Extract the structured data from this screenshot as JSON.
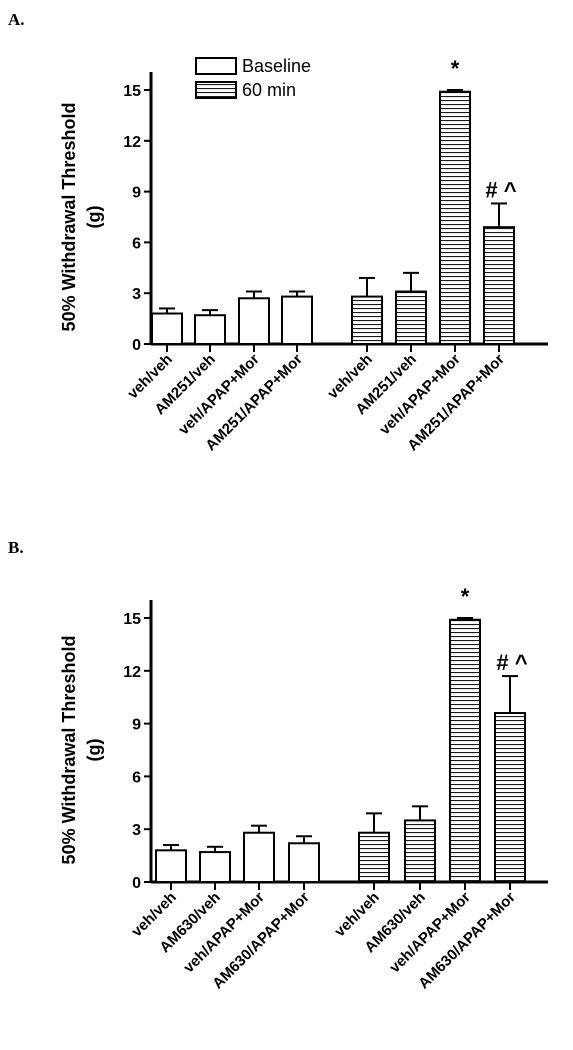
{
  "chart_data": [
    {
      "type": "bar",
      "panel_label": "A.",
      "ylabel_line1": "50% Withdrawal Threshold",
      "ylabel_line2": "(g)",
      "ylim": [
        0,
        15
      ],
      "yticks": [
        0,
        3,
        6,
        9,
        12,
        15
      ],
      "legend": {
        "placement": "top",
        "entries": [
          {
            "name": "Baseline",
            "pattern": "open"
          },
          {
            "name": "60 min",
            "pattern": "horizontal-lines"
          }
        ]
      },
      "groups": [
        {
          "pattern": "open",
          "categories": [
            "veh/veh",
            "AM251/veh",
            "veh/APAP+Mor",
            "AM251/APAP+Mor"
          ],
          "values": [
            1.8,
            1.7,
            2.7,
            2.8
          ],
          "errors": [
            0.3,
            0.3,
            0.4,
            0.3
          ],
          "annotations": [
            "",
            "",
            "",
            ""
          ]
        },
        {
          "pattern": "horizontal-lines",
          "categories": [
            "veh/veh",
            "AM251/veh",
            "veh/APAP+Mor",
            "AM251/APAP+Mor"
          ],
          "values": [
            2.8,
            3.1,
            14.9,
            6.9
          ],
          "errors": [
            1.1,
            1.1,
            0.1,
            1.4
          ],
          "annotations": [
            "",
            "",
            "*",
            "# ^"
          ]
        }
      ]
    },
    {
      "type": "bar",
      "panel_label": "B.",
      "ylabel_line1": "50% Withdrawal Threshold",
      "ylabel_line2": "(g)",
      "ylim": [
        0,
        15
      ],
      "yticks": [
        0,
        3,
        6,
        9,
        12,
        15
      ],
      "groups": [
        {
          "pattern": "open",
          "categories": [
            "veh/veh",
            "AM630/veh",
            "veh/APAP+Mor",
            "AM630/APAP+Mor"
          ],
          "values": [
            1.8,
            1.7,
            2.8,
            2.2
          ],
          "errors": [
            0.3,
            0.3,
            0.4,
            0.4
          ],
          "annotations": [
            "",
            "",
            "",
            ""
          ]
        },
        {
          "pattern": "horizontal-lines",
          "categories": [
            "veh/veh",
            "AM630/veh",
            "veh/APAP+Mor",
            "AM630/APAP+Mor"
          ],
          "values": [
            2.8,
            3.5,
            14.9,
            9.6
          ],
          "errors": [
            1.1,
            0.8,
            0.1,
            2.1
          ],
          "annotations": [
            "",
            "",
            "*",
            "# ^"
          ]
        }
      ]
    }
  ]
}
